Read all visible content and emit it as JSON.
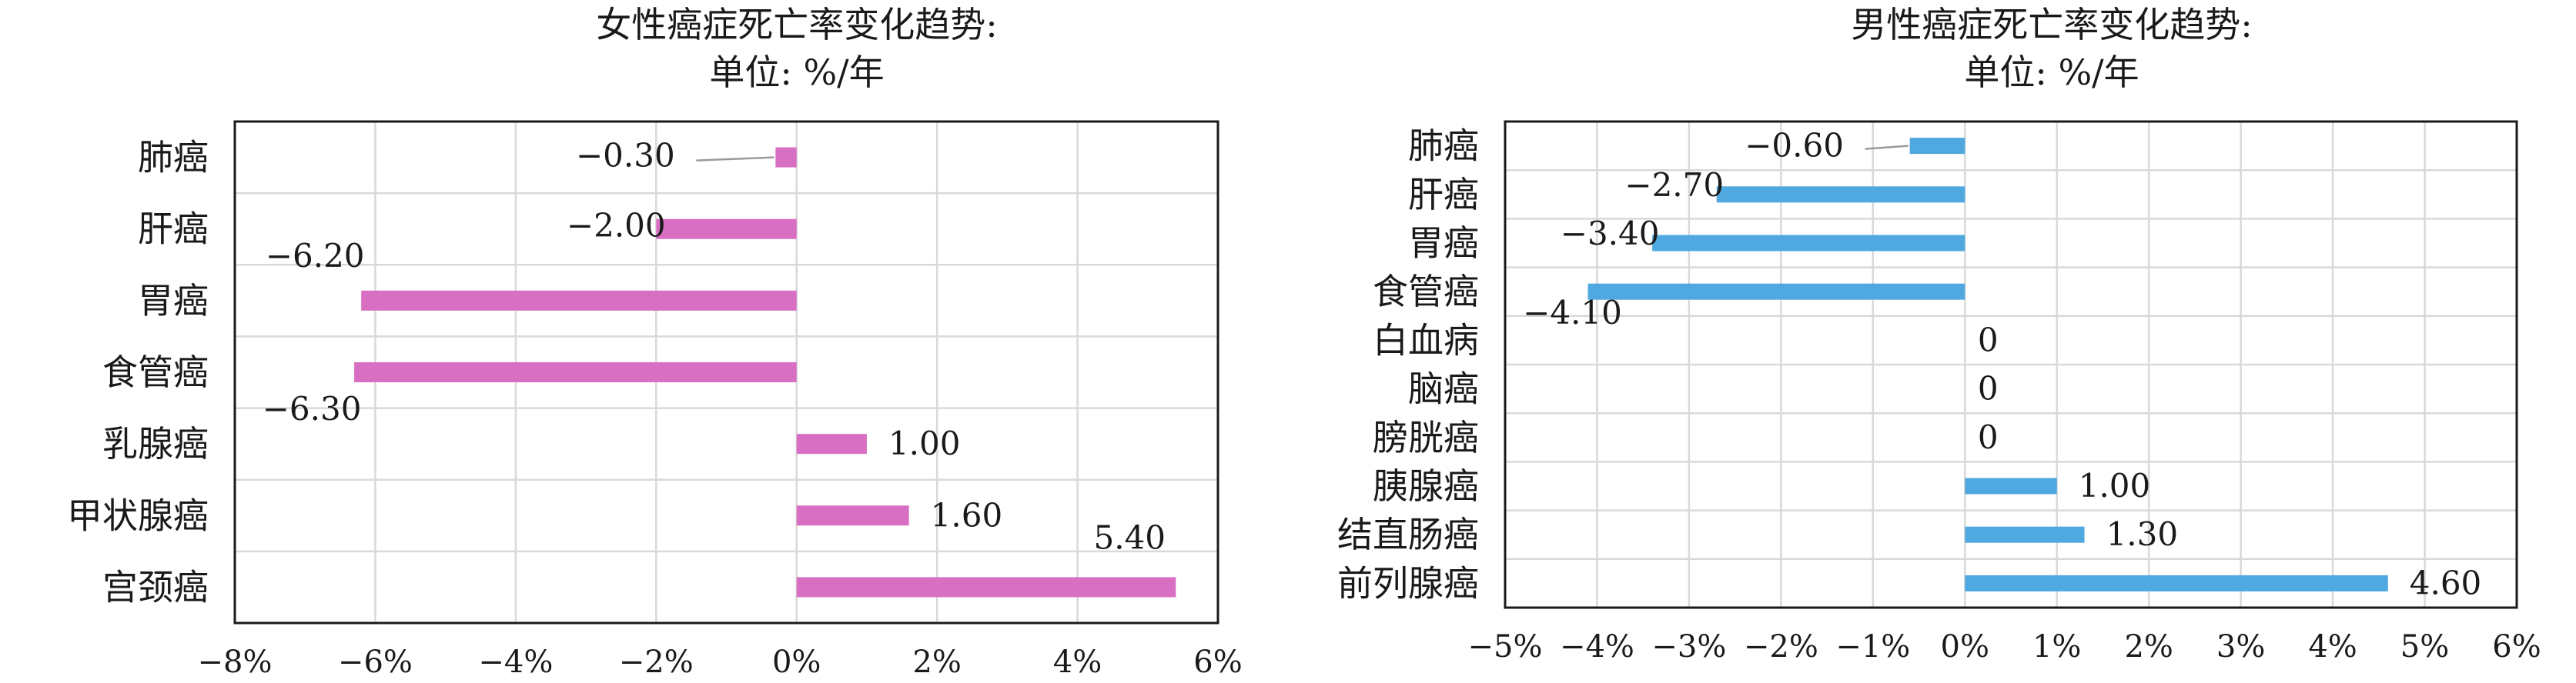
{
  "chart_data": [
    {
      "type": "bar",
      "orientation": "horizontal",
      "title": "女性癌症死亡率变化趋势:",
      "subtitle": "单位: %/年",
      "categories": [
        "肺癌",
        "肝癌",
        "胃癌",
        "食管癌",
        "乳腺癌",
        "甲状腺癌",
        "宫颈癌"
      ],
      "values": [
        -0.3,
        -2.0,
        -6.2,
        -6.3,
        1.0,
        1.6,
        5.4
      ],
      "value_labels": [
        "−0.30",
        "−2.00",
        "−6.20",
        "−6.30",
        "1.00",
        "1.60",
        "5.40"
      ],
      "xlim": [
        -8,
        6
      ],
      "xticks": [
        -8,
        -6,
        -4,
        -2,
        0,
        2,
        4,
        6
      ],
      "xtick_labels": [
        "−8%",
        "−6%",
        "−4%",
        "−2%",
        "0%",
        "2%",
        "4%",
        "6%"
      ],
      "color": "#d96fc2",
      "grid": true,
      "legend": "none"
    },
    {
      "type": "bar",
      "orientation": "horizontal",
      "title": "男性癌症死亡率变化趋势:",
      "subtitle": "单位: %/年",
      "categories": [
        "肺癌",
        "肝癌",
        "胃癌",
        "食管癌",
        "白血病",
        "脑癌",
        "膀胱癌",
        "胰腺癌",
        "结直肠癌",
        "前列腺癌"
      ],
      "values": [
        -0.6,
        -2.7,
        -3.4,
        -4.1,
        0,
        0,
        0,
        1.0,
        1.3,
        4.6
      ],
      "value_labels": [
        "−0.60",
        "−2.70",
        "−3.40",
        "−4.10",
        "0",
        "0",
        "0",
        "1.00",
        "1.30",
        "4.60"
      ],
      "xlim": [
        -5,
        6
      ],
      "xticks": [
        -5,
        -4,
        -3,
        -2,
        -1,
        0,
        1,
        2,
        3,
        4,
        5,
        6
      ],
      "xtick_labels": [
        "−5%",
        "−4%",
        "−3%",
        "−2%",
        "−1%",
        "0%",
        "1%",
        "2%",
        "3%",
        "4%",
        "5%",
        "6%"
      ],
      "color": "#4fa8e0",
      "grid": true,
      "legend": "none"
    }
  ]
}
